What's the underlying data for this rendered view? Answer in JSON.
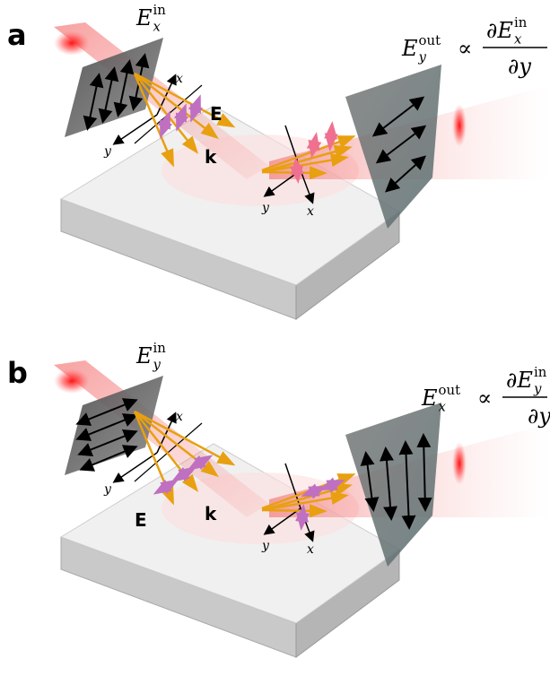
{
  "panels": [
    {
      "label": "a",
      "input_field": {
        "base": "E",
        "sub": "x",
        "sup": "in"
      },
      "output_field": {
        "base": "E",
        "sub": "y",
        "sup": "out"
      },
      "relation": "∝",
      "numerator": {
        "base": "∂E",
        "sub": "x",
        "sup": "in"
      },
      "denominator": "∂y",
      "axis_labels": {
        "x": "x",
        "y": "y"
      },
      "vector_labels": {
        "E": "E",
        "k": "k"
      }
    },
    {
      "label": "b",
      "input_field": {
        "base": "E",
        "sub": "y",
        "sup": "in"
      },
      "output_field": {
        "base": "E",
        "sub": "x",
        "sup": "out"
      },
      "relation": "∝",
      "numerator": {
        "base": "∂E",
        "sub": "y",
        "sup": "in"
      },
      "denominator": "∂y",
      "axis_labels": {
        "x": "x",
        "y": "y"
      },
      "vector_labels": {
        "E": "E",
        "k": "k"
      }
    }
  ]
}
